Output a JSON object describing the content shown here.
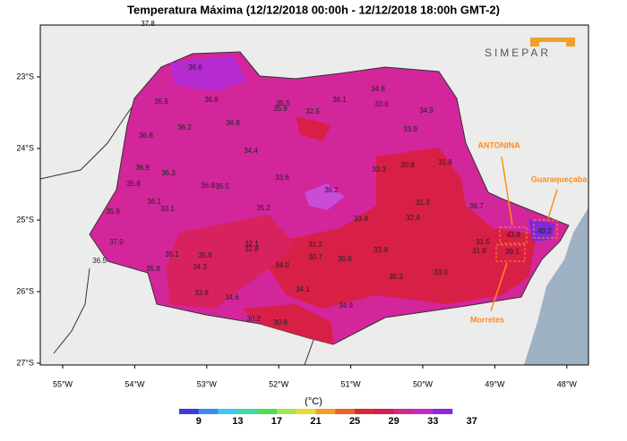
{
  "title": "Temperatura Máxima (12/12/2018 00:00h - 12/12/2018 18:00h GMT-2)",
  "logo": "SIMEPAR",
  "top_value": "37.8",
  "longitudes": [
    "55°W",
    "54°W",
    "53°W",
    "52°W",
    "51°W",
    "50°W",
    "49°W",
    "48°W"
  ],
  "latitudes": [
    "23°S",
    "24°S",
    "25°S",
    "26°S",
    "27°S"
  ],
  "places": [
    "ANTONINA",
    "Guaraqueçaba",
    "Morretes"
  ],
  "stations": [
    "36.6",
    "35.9",
    "36.8",
    "35.5",
    "35.9",
    "32.5",
    "36.1",
    "34.8",
    "33.6",
    "34.9",
    "33.9",
    "36.2",
    "36.8",
    "36.8",
    "34.4",
    "36.9",
    "35.3",
    "35.8",
    "36.8",
    "35.5",
    "33.6",
    "33.3",
    "30.8",
    "31.8",
    "36.1",
    "33.1",
    "36.2",
    "35.2",
    "31.3",
    "36.7",
    "33.4",
    "32.4",
    "35.9",
    "37.0",
    "32.1",
    "32.8",
    "31.2",
    "30.7",
    "30.6",
    "33.9",
    "31.5",
    "31.8",
    "43.9",
    "40.2",
    "39.1",
    "35.1",
    "35.6",
    "36.5",
    "35.8",
    "34.3",
    "34.0",
    "35.3",
    "33.0",
    "34.1",
    "33.8",
    "34.6",
    "34.9",
    "30.2",
    "30.9"
  ],
  "colorbar": {
    "unit": "(°C)",
    "ticks": [
      9,
      13,
      17,
      21,
      25,
      29,
      33,
      37
    ],
    "colors": [
      "#3c3cdc",
      "#3c8cf0",
      "#3cc8f0",
      "#3cdca0",
      "#50dc50",
      "#a0e650",
      "#e6dc32",
      "#f0a028",
      "#e66428",
      "#dc2832",
      "#d21e50",
      "#d2288c",
      "#c828c8",
      "#8c28dc"
    ]
  }
}
